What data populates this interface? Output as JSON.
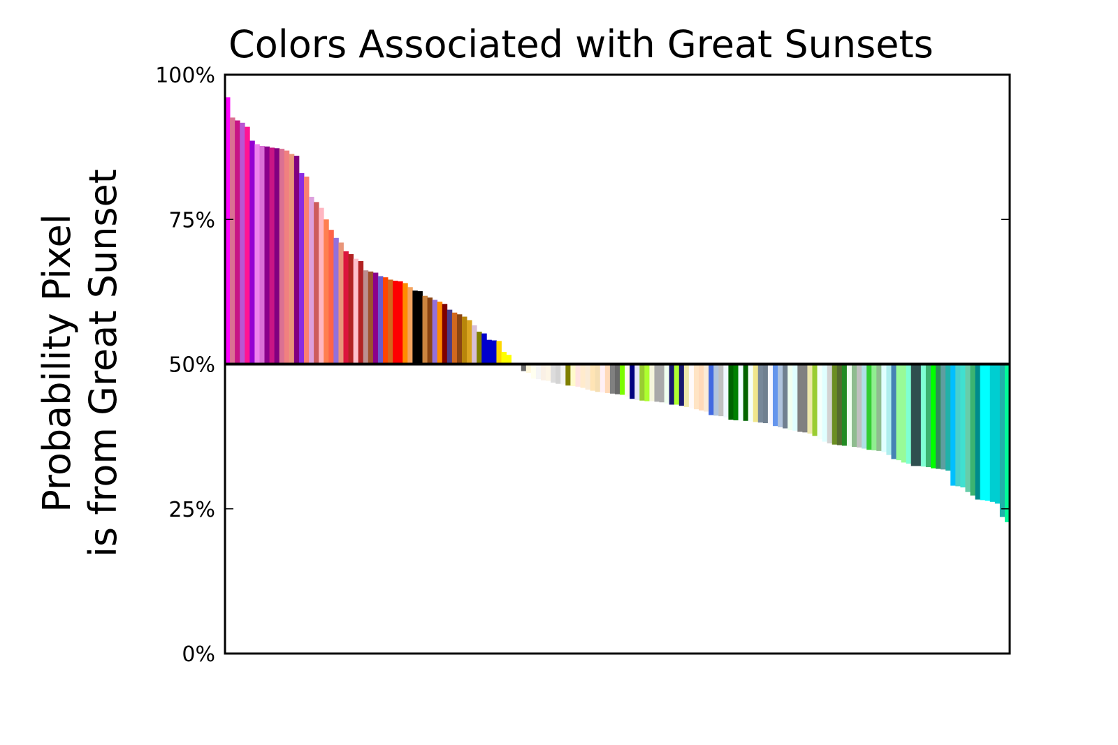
{
  "chart_data": {
    "type": "bar",
    "title": "Colors Associated with Great Sunsets",
    "ylabel_line1": "Probability Pixel",
    "ylabel_line2": "is from Great Sunset",
    "xlabel": "",
    "ylim": [
      0,
      100
    ],
    "baseline": 50,
    "y_ticks": [
      0,
      25,
      50,
      75,
      100
    ],
    "y_tick_labels": [
      "0%",
      "25%",
      "50%",
      "75%",
      "100%"
    ],
    "grid": false,
    "bars": [
      {
        "color": "#ff00ff",
        "value": 96.1
      },
      {
        "color": "#db7093",
        "value": 92.6
      },
      {
        "color": "#c71585",
        "value": 92.1
      },
      {
        "color": "#ba55d3",
        "value": 91.7
      },
      {
        "color": "#ff1493",
        "value": 91.0
      },
      {
        "color": "#9400d3",
        "value": 88.6
      },
      {
        "color": "#ee82ee",
        "value": 88.0
      },
      {
        "color": "#da70d6",
        "value": 87.7
      },
      {
        "color": "#8b008b",
        "value": 87.6
      },
      {
        "color": "#c71585",
        "value": 87.4
      },
      {
        "color": "#800080",
        "value": 87.3
      },
      {
        "color": "#db7093",
        "value": 87.2
      },
      {
        "color": "#f08080",
        "value": 86.9
      },
      {
        "color": "#e9967a",
        "value": 86.3
      },
      {
        "color": "#800080",
        "value": 86.0
      },
      {
        "color": "#8a2be2",
        "value": 83.0
      },
      {
        "color": "#fa8072",
        "value": 82.4
      },
      {
        "color": "#dda0dd",
        "value": 78.9
      },
      {
        "color": "#cd5c5c",
        "value": 78.0
      },
      {
        "color": "#ffb6c1",
        "value": 77.0
      },
      {
        "color": "#ff7f50",
        "value": 75.0
      },
      {
        "color": "#ff6347",
        "value": 73.2
      },
      {
        "color": "#9370db",
        "value": 71.8
      },
      {
        "color": "#e9967a",
        "value": 71.0
      },
      {
        "color": "#dc143c",
        "value": 69.5
      },
      {
        "color": "#b22222",
        "value": 69.0
      },
      {
        "color": "#ffc0cb",
        "value": 68.2
      },
      {
        "color": "#b22222",
        "value": 67.8
      },
      {
        "color": "#bc8f8f",
        "value": 66.2
      },
      {
        "color": "#a0522d",
        "value": 66.0
      },
      {
        "color": "#8b008b",
        "value": 65.8
      },
      {
        "color": "#6a5acd",
        "value": 65.2
      },
      {
        "color": "#ff4500",
        "value": 65.0
      },
      {
        "color": "#d2691e",
        "value": 64.6
      },
      {
        "color": "#ff0000",
        "value": 64.4
      },
      {
        "color": "#ff0000",
        "value": 64.3
      },
      {
        "color": "#ff8c00",
        "value": 64.0
      },
      {
        "color": "#f4a460",
        "value": 63.3
      },
      {
        "color": "#000000",
        "value": 62.7
      },
      {
        "color": "#000000",
        "value": 62.6
      },
      {
        "color": "#cd853f",
        "value": 61.8
      },
      {
        "color": "#8b4513",
        "value": 61.5
      },
      {
        "color": "#9370db",
        "value": 61.1
      },
      {
        "color": "#ff8c00",
        "value": 60.8
      },
      {
        "color": "#800000",
        "value": 60.4
      },
      {
        "color": "#483d8b",
        "value": 59.4
      },
      {
        "color": "#d2691e",
        "value": 58.9
      },
      {
        "color": "#8b4513",
        "value": 58.6
      },
      {
        "color": "#b8860b",
        "value": 58.2
      },
      {
        "color": "#daa520",
        "value": 57.6
      },
      {
        "color": "#d8bfd8",
        "value": 56.7
      },
      {
        "color": "#808000",
        "value": 55.6
      },
      {
        "color": "#0000cd",
        "value": 55.3
      },
      {
        "color": "#0000cd",
        "value": 54.2
      },
      {
        "color": "#0000cd",
        "value": 54.1
      },
      {
        "color": "#ffd700",
        "value": 54.0
      },
      {
        "color": "#ffff00",
        "value": 52.1
      },
      {
        "color": "#ffff00",
        "value": 51.6
      },
      {
        "color": "#ffffff",
        "value": 50.0
      },
      {
        "color": "#fffafa",
        "value": 49.9
      },
      {
        "color": "#696969",
        "value": 48.8
      },
      {
        "color": "#fff8dc",
        "value": 48.5
      },
      {
        "color": "#fffff0",
        "value": 47.5
      },
      {
        "color": "#f5f5f5",
        "value": 47.4
      },
      {
        "color": "#faf0e6",
        "value": 47.2
      },
      {
        "color": "#fdf5e6",
        "value": 47.1
      },
      {
        "color": "#dcdcdc",
        "value": 46.8
      },
      {
        "color": "#d3d3d3",
        "value": 46.6
      },
      {
        "color": "#f5f5f5",
        "value": 46.5
      },
      {
        "color": "#808000",
        "value": 46.3
      },
      {
        "color": "#fffacd",
        "value": 46.2
      },
      {
        "color": "#ffe4e1",
        "value": 46.1
      },
      {
        "color": "#ffebcd",
        "value": 45.9
      },
      {
        "color": "#faebd7",
        "value": 45.6
      },
      {
        "color": "#ffe4b5",
        "value": 45.4
      },
      {
        "color": "#f5deb3",
        "value": 45.2
      },
      {
        "color": "#fff0f5",
        "value": 45.1
      },
      {
        "color": "#ffdab9",
        "value": 45.0
      },
      {
        "color": "#808080",
        "value": 44.9
      },
      {
        "color": "#696969",
        "value": 44.8
      },
      {
        "color": "#7cfc00",
        "value": 44.7
      },
      {
        "color": "#fffaf0",
        "value": 44.4
      },
      {
        "color": "#000080",
        "value": 44.0
      },
      {
        "color": "#e6e6fa",
        "value": 43.8
      },
      {
        "color": "#9acd32",
        "value": 43.7
      },
      {
        "color": "#adff2f",
        "value": 43.6
      },
      {
        "color": "#f5f5dc",
        "value": 43.6
      },
      {
        "color": "#a9a9a9",
        "value": 43.5
      },
      {
        "color": "#a9a9a9",
        "value": 43.4
      },
      {
        "color": "#f0fff0",
        "value": 43.2
      },
      {
        "color": "#191970",
        "value": 43.0
      },
      {
        "color": "#adff2f",
        "value": 43.0
      },
      {
        "color": "#191970",
        "value": 42.8
      },
      {
        "color": "#eee8aa",
        "value": 42.6
      },
      {
        "color": "#fffafa",
        "value": 42.4
      },
      {
        "color": "#ffe4c4",
        "value": 42.2
      },
      {
        "color": "#ffdab9",
        "value": 42.0
      },
      {
        "color": "#faebd7",
        "value": 41.8
      },
      {
        "color": "#4169e1",
        "value": 41.2
      },
      {
        "color": "#b0c4de",
        "value": 41.1
      },
      {
        "color": "#c0c0c0",
        "value": 41.0
      },
      {
        "color": "#f0f8ff",
        "value": 40.8
      },
      {
        "color": "#006400",
        "value": 40.4
      },
      {
        "color": "#008000",
        "value": 40.3
      },
      {
        "color": "#f0ffff",
        "value": 40.3
      },
      {
        "color": "#006400",
        "value": 40.2
      },
      {
        "color": "#f5fffa",
        "value": 40.1
      },
      {
        "color": "#f0e68c",
        "value": 40.0
      },
      {
        "color": "#778899",
        "value": 39.9
      },
      {
        "color": "#708090",
        "value": 39.8
      },
      {
        "color": "#f8f8ff",
        "value": 39.6
      },
      {
        "color": "#6495ed",
        "value": 39.3
      },
      {
        "color": "#b0c4de",
        "value": 39.1
      },
      {
        "color": "#708090",
        "value": 38.9
      },
      {
        "color": "#f0fff0",
        "value": 38.6
      },
      {
        "color": "#e0ffff",
        "value": 38.5
      },
      {
        "color": "#808080",
        "value": 38.3
      },
      {
        "color": "#808080",
        "value": 38.2
      },
      {
        "color": "#eee8aa",
        "value": 38.0
      },
      {
        "color": "#9acd32",
        "value": 37.6
      },
      {
        "color": "#f5fffa",
        "value": 37.0
      },
      {
        "color": "#e0ffff",
        "value": 36.6
      },
      {
        "color": "#d3d3d3",
        "value": 36.3
      },
      {
        "color": "#6b8e23",
        "value": 36.1
      },
      {
        "color": "#556b2f",
        "value": 36.0
      },
      {
        "color": "#228b22",
        "value": 35.9
      },
      {
        "color": "#f0fff0",
        "value": 35.8
      },
      {
        "color": "#8fbc8f",
        "value": 35.7
      },
      {
        "color": "#c0c0c0",
        "value": 35.6
      },
      {
        "color": "#b0e0e6",
        "value": 35.4
      },
      {
        "color": "#32cd32",
        "value": 35.2
      },
      {
        "color": "#90ee90",
        "value": 35.1
      },
      {
        "color": "#8fbc8f",
        "value": 35.0
      },
      {
        "color": "#e0ffff",
        "value": 34.8
      },
      {
        "color": "#afeeee",
        "value": 34.3
      },
      {
        "color": "#4682b4",
        "value": 33.6
      },
      {
        "color": "#98fb98",
        "value": 33.4
      },
      {
        "color": "#98fb98",
        "value": 33.0
      },
      {
        "color": "#7fffd4",
        "value": 32.8
      },
      {
        "color": "#2f4f4f",
        "value": 32.4
      },
      {
        "color": "#2f4f4f",
        "value": 32.4
      },
      {
        "color": "#7fffd4",
        "value": 32.3
      },
      {
        "color": "#3cb371",
        "value": 32.2
      },
      {
        "color": "#00ff00",
        "value": 32.0
      },
      {
        "color": "#2e8b57",
        "value": 31.9
      },
      {
        "color": "#5f9ea0",
        "value": 31.8
      },
      {
        "color": "#20b2aa",
        "value": 31.6
      },
      {
        "color": "#00bfff",
        "value": 29.0
      },
      {
        "color": "#48d1cc",
        "value": 28.9
      },
      {
        "color": "#40e0d0",
        "value": 28.7
      },
      {
        "color": "#66cdaa",
        "value": 27.9
      },
      {
        "color": "#3cb371",
        "value": 27.3
      },
      {
        "color": "#008b8b",
        "value": 26.6
      },
      {
        "color": "#00ffff",
        "value": 26.5
      },
      {
        "color": "#00ffff",
        "value": 26.4
      },
      {
        "color": "#00ced1",
        "value": 26.2
      },
      {
        "color": "#00ced1",
        "value": 25.9
      },
      {
        "color": "#20b2aa",
        "value": 23.6
      },
      {
        "color": "#00fa9a",
        "value": 22.7
      }
    ]
  }
}
